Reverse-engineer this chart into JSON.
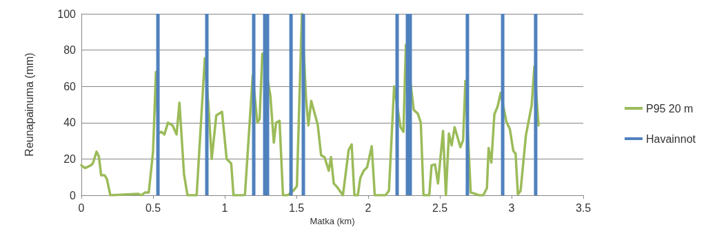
{
  "chart_data": {
    "type": "line",
    "xlabel": "Matka (km)",
    "ylabel": "Reunapainuma (mm)",
    "xlim": [
      0,
      3.5
    ],
    "xticks": [
      0,
      0.5,
      1,
      1.5,
      2,
      2.5,
      3,
      3.5
    ],
    "ylim": [
      0,
      100
    ],
    "yticks": [
      0,
      20,
      40,
      60,
      80,
      100
    ],
    "grid": "y",
    "legend": "right",
    "marker": "none",
    "line_style": "solid",
    "series": [
      {
        "name": "P95 20 m",
        "color": "#9bbb59",
        "x": [
          0,
          0.026,
          0.066,
          0.08,
          0.106,
          0.122,
          0.138,
          0.162,
          0.178,
          0.202,
          0.395,
          0.419,
          0.443,
          0.47,
          0.5,
          0.52,
          0.536,
          0.558,
          0.579,
          0.604,
          0.636,
          0.664,
          0.684,
          0.716,
          0.74,
          0.804,
          0.861,
          0.885,
          0.909,
          0.941,
          0.981,
          1.013,
          1.045,
          1.061,
          1.13,
          1.141,
          1.195,
          1.227,
          1.243,
          1.262,
          1.278,
          1.318,
          1.342,
          1.358,
          1.382,
          1.406,
          1.438,
          1.478,
          1.503,
          1.538,
          1.567,
          1.583,
          1.603,
          1.648,
          1.672,
          1.696,
          1.725,
          1.741,
          1.76,
          1.784,
          1.824,
          1.864,
          1.885,
          1.904,
          1.928,
          1.945,
          1.969,
          1.993,
          2.025,
          2.046,
          2.121,
          2.145,
          2.181,
          2.226,
          2.246,
          2.263,
          2.318,
          2.346,
          2.367,
          2.386,
          2.426,
          2.442,
          2.466,
          2.487,
          2.522,
          2.542,
          2.563,
          2.582,
          2.603,
          2.643,
          2.662,
          2.678,
          2.715,
          2.739,
          2.771,
          2.803,
          2.828,
          2.84,
          2.859,
          2.88,
          2.903,
          2.924,
          2.964,
          2.988,
          3.012,
          3.028,
          3.044,
          3.063,
          3.1,
          3.14,
          3.159,
          3.188
        ],
        "values": [
          16.5,
          15,
          16.5,
          17.5,
          24,
          21.5,
          11,
          11,
          9,
          0,
          0.8,
          0,
          1.5,
          1.5,
          24,
          68,
          34,
          35,
          33.5,
          40,
          38.5,
          33.5,
          51,
          11.5,
          0,
          0,
          75.5,
          50.5,
          20,
          44,
          46,
          20,
          17.5,
          0,
          0,
          0.5,
          66,
          40,
          42,
          78,
          73,
          55,
          29,
          40,
          41,
          0,
          0,
          2.5,
          5,
          100,
          53,
          38.5,
          52,
          39,
          22,
          21,
          13.5,
          21,
          6.5,
          4.5,
          0,
          25,
          28,
          0,
          0,
          9.5,
          13.5,
          15.5,
          27,
          0,
          0,
          2.5,
          60,
          37.5,
          35,
          83,
          47,
          45,
          40,
          0,
          0,
          16.5,
          17,
          6.5,
          35.5,
          0,
          34,
          27.5,
          37.5,
          26.5,
          30.5,
          63,
          1.5,
          1,
          0,
          0,
          4,
          26,
          18,
          44.5,
          49,
          56.5,
          40.5,
          36.5,
          24.5,
          23,
          0.5,
          2.5,
          33,
          49.5,
          71,
          38.5
        ]
      },
      {
        "name": "Havainnot",
        "type": "bar",
        "color": "#4f81bd",
        "x": [
          0.534,
          0.875,
          1.202,
          1.279,
          1.298,
          1.462,
          1.548,
          2.202,
          2.274,
          2.293,
          2.692,
          2.938,
          3.168
        ],
        "values": [
          100,
          100,
          100,
          100,
          100,
          100,
          100,
          100,
          100,
          100,
          100,
          100,
          100
        ]
      }
    ]
  }
}
